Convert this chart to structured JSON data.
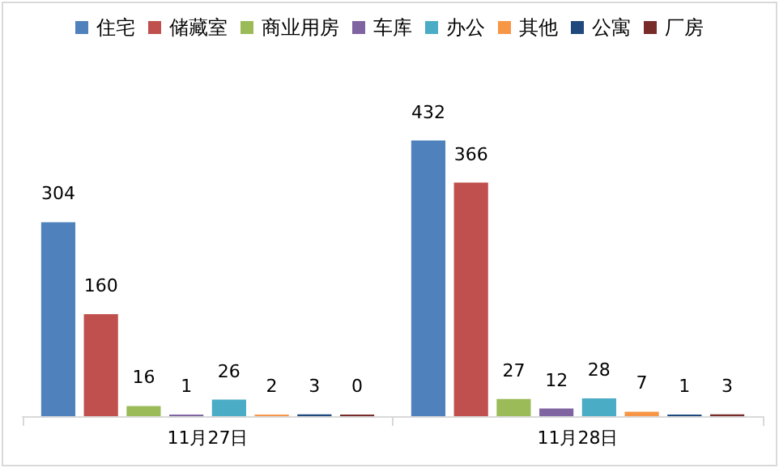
{
  "chart_data": {
    "type": "bar",
    "categories": [
      "11月27日",
      "11月28日"
    ],
    "series": [
      {
        "name": "住宅",
        "color": "#4f81bd",
        "values": [
          304,
          432
        ]
      },
      {
        "name": "储藏室",
        "color": "#c0504d",
        "values": [
          160,
          366
        ]
      },
      {
        "name": "商业用房",
        "color": "#9bbb59",
        "values": [
          16,
          27
        ]
      },
      {
        "name": "车库",
        "color": "#8064a2",
        "values": [
          1,
          12
        ]
      },
      {
        "name": "办公",
        "color": "#4bacc6",
        "values": [
          26,
          28
        ]
      },
      {
        "name": "其他",
        "color": "#f79646",
        "values": [
          2,
          7
        ]
      },
      {
        "name": "公寓",
        "color": "#1f497d",
        "values": [
          3,
          1
        ]
      },
      {
        "name": "厂房",
        "color": "#772c2a",
        "values": [
          0,
          3
        ]
      }
    ],
    "data_labels": true,
    "legend": "top"
  }
}
